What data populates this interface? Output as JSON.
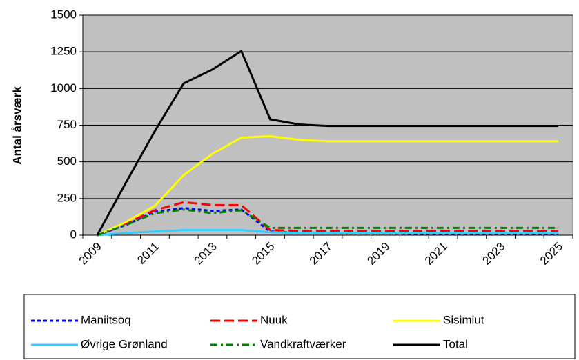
{
  "chart_data": {
    "type": "line",
    "y_label": "Antal årsværk",
    "categories": [
      "2009",
      null,
      "2011",
      null,
      "2013",
      null,
      "2015",
      null,
      "2017",
      null,
      "2019",
      null,
      "2021",
      null,
      "2023",
      null,
      "2025"
    ],
    "ylim": [
      0,
      1500
    ],
    "yticks": [
      0,
      250,
      500,
      750,
      1000,
      1250,
      1500
    ],
    "grid": true,
    "background": "#c0c0c0",
    "legend": "bottom",
    "series": [
      {
        "name": "Maniitsoq",
        "color": "#0000ff",
        "dash": "dotted",
        "values": [
          0,
          70,
          160,
          185,
          165,
          175,
          25,
          15,
          15,
          12,
          12,
          10,
          10,
          10,
          10,
          10,
          10
        ]
      },
      {
        "name": "Nuuk",
        "color": "#ff0000",
        "dash": "dashed",
        "values": [
          0,
          80,
          170,
          225,
          205,
          205,
          35,
          30,
          30,
          30,
          30,
          30,
          30,
          30,
          30,
          30,
          30
        ]
      },
      {
        "name": "Sisimiut",
        "color": "#ffff00",
        "dash": "solid",
        "values": [
          0,
          90,
          200,
          410,
          555,
          665,
          675,
          650,
          640,
          640,
          640,
          640,
          640,
          640,
          640,
          640,
          640
        ]
      },
      {
        "name": "Øvrige Grønland",
        "color": "#33ccff",
        "dash": "solid",
        "values": [
          0,
          15,
          25,
          35,
          35,
          35,
          20,
          15,
          15,
          15,
          15,
          15,
          15,
          15,
          15,
          15,
          15
        ]
      },
      {
        "name": "Vandkraftværker",
        "color": "#008000",
        "dash": "dashdot",
        "values": [
          0,
          70,
          150,
          175,
          150,
          170,
          50,
          50,
          50,
          50,
          50,
          50,
          50,
          50,
          50,
          50,
          50
        ]
      },
      {
        "name": "Total",
        "color": "#000000",
        "dash": "solid",
        "values": [
          0,
          360,
          710,
          1035,
          1130,
          1255,
          790,
          755,
          745,
          745,
          745,
          745,
          745,
          745,
          745,
          745,
          745
        ]
      }
    ]
  }
}
